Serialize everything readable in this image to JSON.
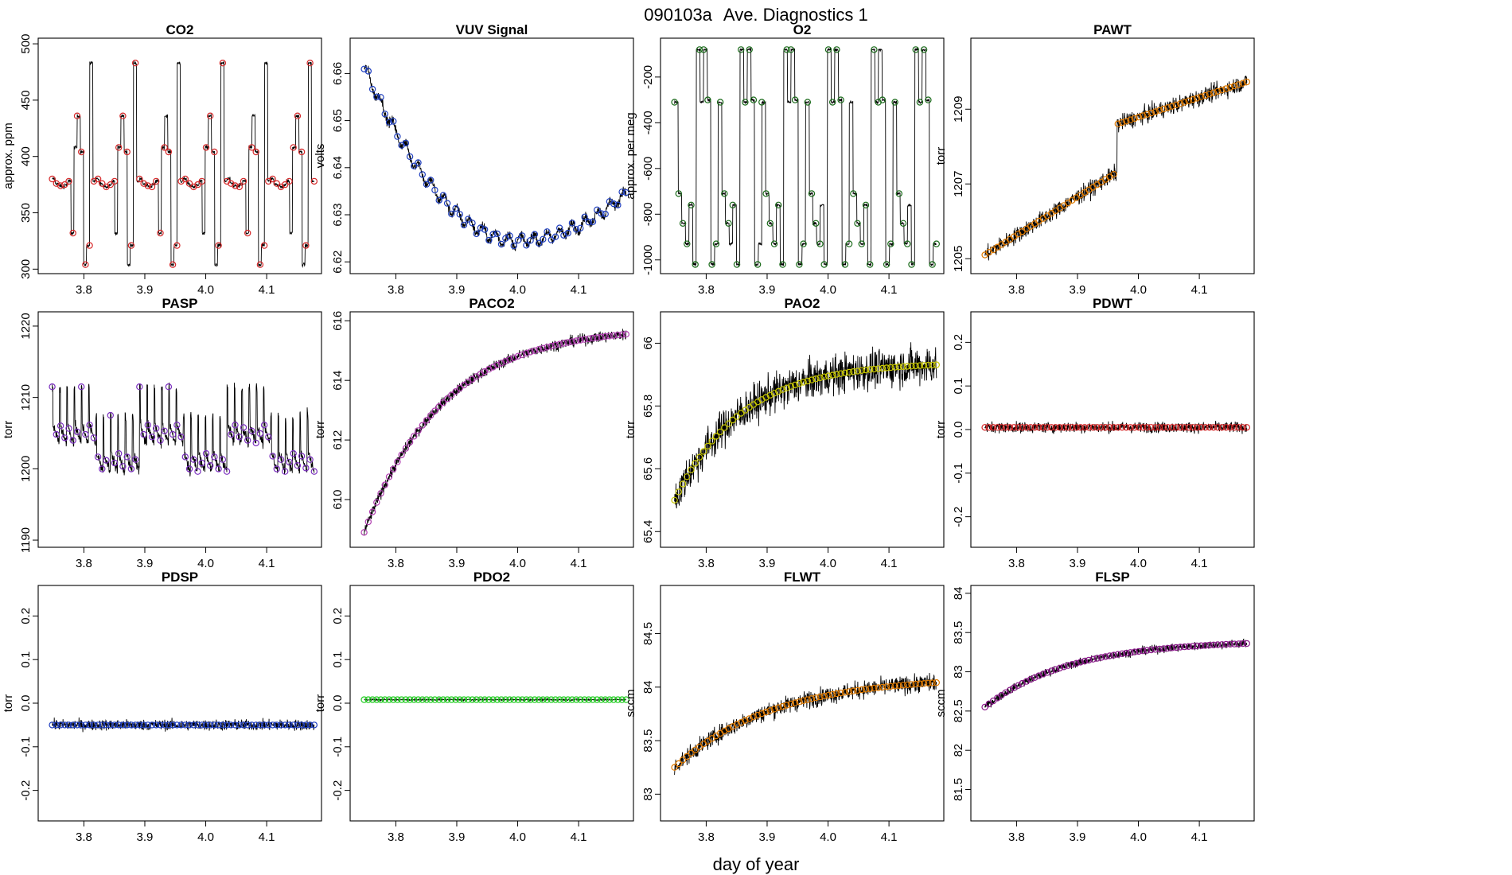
{
  "figure": {
    "title_id": "090103a",
    "title_text": "Ave. Diagnostics 1",
    "xlabel": "day of year"
  },
  "chart_data": [
    {
      "type": "line",
      "title": "CO2",
      "ylabel": "approx. ppm",
      "xlim": [
        3.725,
        4.19
      ],
      "ylim": [
        296,
        505
      ],
      "yticks": [
        300,
        350,
        400,
        450,
        500
      ],
      "xticks": [
        3.8,
        3.9,
        4.0,
        4.1
      ],
      "marker_color": "#d62728",
      "trace_color": "#000000",
      "pattern": "co2",
      "series": [
        {
          "name": "CO2",
          "x_start": 3.748,
          "x_end": 4.178
        }
      ]
    },
    {
      "type": "line",
      "title": "VUV Signal",
      "ylabel": "volts",
      "xlim": [
        3.725,
        4.19
      ],
      "ylim": [
        6.6175,
        6.6675
      ],
      "yticks": [
        6.62,
        6.63,
        6.64,
        6.65,
        6.66
      ],
      "xticks": [
        3.8,
        3.9,
        4.0,
        4.1
      ],
      "marker_color": "#1f3fbf",
      "trace_color": "#000000",
      "pattern": "vuv",
      "series": [
        {
          "name": "VUV Signal",
          "x_start": 3.748,
          "x_end": 4.178
        }
      ]
    },
    {
      "type": "line",
      "title": "O2",
      "ylabel": "approx. per meg",
      "xlim": [
        3.725,
        4.19
      ],
      "ylim": [
        -1060,
        -30
      ],
      "yticks": [
        -1000,
        -800,
        -600,
        -400,
        -200
      ],
      "xticks": [
        3.8,
        3.9,
        4.0,
        4.1
      ],
      "marker_color": "#1a6b1a",
      "trace_color": "#000000",
      "pattern": "o2",
      "series": [
        {
          "name": "O2",
          "x_start": 3.748,
          "x_end": 4.178
        }
      ]
    },
    {
      "type": "line",
      "title": "PAWT",
      "ylabel": "torr",
      "xlim": [
        3.725,
        4.19
      ],
      "ylim": [
        1204.6,
        1210.9
      ],
      "yticks": [
        1205,
        1207,
        1209
      ],
      "xticks": [
        3.8,
        3.9,
        4.0,
        4.1
      ],
      "marker_color": "#e07b00",
      "trace_color": "#000000",
      "pattern": "pawt",
      "series": [
        {
          "name": "PAWT",
          "x_start": 3.748,
          "x_end": 4.178
        }
      ]
    },
    {
      "type": "line",
      "title": "PASP",
      "ylabel": "torr",
      "xlim": [
        3.725,
        4.19
      ],
      "ylim": [
        1189,
        1222
      ],
      "yticks": [
        1190,
        1200,
        1210,
        1220
      ],
      "xticks": [
        3.8,
        3.9,
        4.0,
        4.1
      ],
      "marker_color": "#7b2fbf",
      "trace_color": "#000000",
      "pattern": "pasp",
      "series": [
        {
          "name": "PASP",
          "x_start": 3.748,
          "x_end": 4.178
        }
      ]
    },
    {
      "type": "line",
      "title": "PACO2",
      "ylabel": "torr",
      "xlim": [
        3.725,
        4.19
      ],
      "ylim": [
        608.4,
        616.3
      ],
      "yticks": [
        610,
        612,
        614,
        616
      ],
      "xticks": [
        3.8,
        3.9,
        4.0,
        4.1
      ],
      "marker_color": "#b03fb0",
      "trace_color": "#000000",
      "pattern": "paco2",
      "series": [
        {
          "name": "PACO2",
          "x_start": 3.748,
          "x_end": 4.178
        }
      ]
    },
    {
      "type": "line",
      "title": "PAO2",
      "ylabel": "torr",
      "xlim": [
        3.725,
        4.19
      ],
      "ylim": [
        65.35,
        66.1
      ],
      "yticks": [
        65.4,
        65.6,
        65.8,
        66.0
      ],
      "xticks": [
        3.8,
        3.9,
        4.0,
        4.1
      ],
      "marker_color": "#c8c800",
      "trace_color": "#000000",
      "pattern": "pao2",
      "series": [
        {
          "name": "PAO2",
          "x_start": 3.748,
          "x_end": 4.178
        }
      ]
    },
    {
      "type": "line",
      "title": "PDWT",
      "ylabel": "torr",
      "xlim": [
        3.725,
        4.19
      ],
      "ylim": [
        -0.27,
        0.27
      ],
      "yticks": [
        -0.2,
        -0.1,
        0.0,
        0.1,
        0.2
      ],
      "xticks": [
        3.8,
        3.9,
        4.0,
        4.1
      ],
      "marker_color": "#d62728",
      "trace_color": "#000000",
      "pattern": "pdwt",
      "series": [
        {
          "name": "PDWT",
          "x_start": 3.748,
          "x_end": 4.178
        }
      ]
    },
    {
      "type": "line",
      "title": "PDSP",
      "ylabel": "torr",
      "xlim": [
        3.725,
        4.19
      ],
      "ylim": [
        -0.27,
        0.27
      ],
      "yticks": [
        -0.2,
        -0.1,
        0.0,
        0.1,
        0.2
      ],
      "xticks": [
        3.8,
        3.9,
        4.0,
        4.1
      ],
      "marker_color": "#1f3fbf",
      "trace_color": "#000000",
      "pattern": "pdsp",
      "series": [
        {
          "name": "PDSP",
          "x_start": 3.748,
          "x_end": 4.178
        }
      ]
    },
    {
      "type": "line",
      "title": "PDO2",
      "ylabel": "torr",
      "xlim": [
        3.725,
        4.19
      ],
      "ylim": [
        -0.27,
        0.27
      ],
      "yticks": [
        -0.2,
        -0.1,
        0.0,
        0.1,
        0.2
      ],
      "xticks": [
        3.8,
        3.9,
        4.0,
        4.1
      ],
      "marker_color": "#22cc22",
      "trace_color": "#000000",
      "pattern": "pdo2",
      "series": [
        {
          "name": "PDO2",
          "x_start": 3.748,
          "x_end": 4.178
        }
      ]
    },
    {
      "type": "line",
      "title": "FLWT",
      "ylabel": "sccm",
      "xlim": [
        3.725,
        4.19
      ],
      "ylim": [
        82.75,
        84.95
      ],
      "yticks": [
        83.0,
        83.5,
        84.0,
        84.5
      ],
      "xticks": [
        3.8,
        3.9,
        4.0,
        4.1
      ],
      "marker_color": "#e07b00",
      "trace_color": "#000000",
      "pattern": "flwt",
      "series": [
        {
          "name": "FLWT",
          "x_start": 3.748,
          "x_end": 4.178
        }
      ]
    },
    {
      "type": "line",
      "title": "FLSP",
      "ylabel": "sccm",
      "xlim": [
        3.725,
        4.19
      ],
      "ylim": [
        81.1,
        84.1
      ],
      "yticks": [
        81.5,
        82.0,
        82.5,
        83.0,
        83.5,
        84.0
      ],
      "xticks": [
        3.8,
        3.9,
        4.0,
        4.1
      ],
      "marker_color": "#8b1a8b",
      "trace_color": "#000000",
      "pattern": "flsp",
      "series": [
        {
          "name": "FLSP",
          "x_start": 3.748,
          "x_end": 4.178
        }
      ]
    }
  ]
}
